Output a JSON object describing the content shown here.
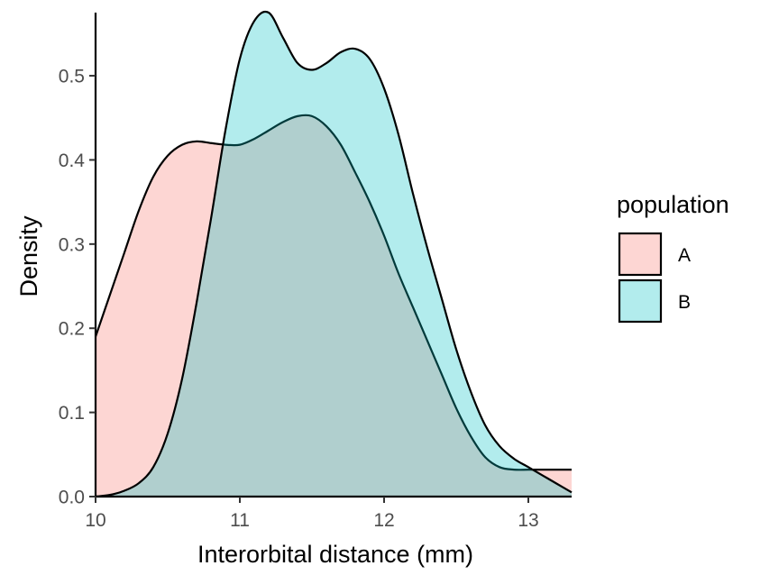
{
  "chart_data": {
    "type": "area",
    "title": "",
    "xlabel": "Interorbital distance (mm)",
    "ylabel": "Density",
    "xlim": [
      10,
      13.3
    ],
    "ylim": [
      0,
      0.575
    ],
    "x_ticks": [
      10,
      11,
      12,
      13
    ],
    "y_ticks": [
      0.0,
      0.1,
      0.2,
      0.3,
      0.4,
      0.5
    ],
    "x_tick_labels": [
      "10",
      "11",
      "12",
      "13"
    ],
    "y_tick_labels": [
      "0.0",
      "0.1",
      "0.2",
      "0.3",
      "0.4",
      "0.5"
    ],
    "grid": false,
    "legend": {
      "title": "population",
      "placement": "right"
    },
    "series": [
      {
        "name": "A",
        "color": "#F8766D",
        "x": [
          10.0,
          10.1,
          10.2,
          10.3,
          10.4,
          10.5,
          10.6,
          10.7,
          10.8,
          10.9,
          11.0,
          11.1,
          11.2,
          11.3,
          11.4,
          11.5,
          11.6,
          11.7,
          11.8,
          11.9,
          12.0,
          12.1,
          12.2,
          12.3,
          12.4,
          12.5,
          12.6,
          12.7,
          12.8,
          12.9,
          13.0,
          13.1,
          13.2,
          13.3
        ],
        "values": [
          0.19,
          0.24,
          0.29,
          0.34,
          0.38,
          0.405,
          0.418,
          0.422,
          0.42,
          0.418,
          0.418,
          0.425,
          0.435,
          0.445,
          0.452,
          0.452,
          0.44,
          0.418,
          0.385,
          0.35,
          0.31,
          0.265,
          0.225,
          0.185,
          0.145,
          0.105,
          0.072,
          0.047,
          0.035,
          0.032,
          0.032,
          0.032,
          0.032,
          0.032
        ]
      },
      {
        "name": "B",
        "color": "#00BFC4",
        "x": [
          10.0,
          10.1,
          10.2,
          10.3,
          10.4,
          10.5,
          10.6,
          10.7,
          10.8,
          10.9,
          11.0,
          11.1,
          11.2,
          11.3,
          11.4,
          11.5,
          11.6,
          11.7,
          11.8,
          11.9,
          12.0,
          12.1,
          12.2,
          12.3,
          12.4,
          12.5,
          12.6,
          12.7,
          12.8,
          12.9,
          13.0,
          13.1,
          13.2,
          13.3
        ],
        "values": [
          0.0,
          0.002,
          0.007,
          0.016,
          0.035,
          0.075,
          0.14,
          0.23,
          0.33,
          0.435,
          0.52,
          0.565,
          0.575,
          0.545,
          0.515,
          0.507,
          0.515,
          0.528,
          0.532,
          0.52,
          0.485,
          0.43,
          0.36,
          0.295,
          0.235,
          0.175,
          0.125,
          0.085,
          0.06,
          0.045,
          0.035,
          0.025,
          0.015,
          0.005
        ]
      }
    ]
  }
}
